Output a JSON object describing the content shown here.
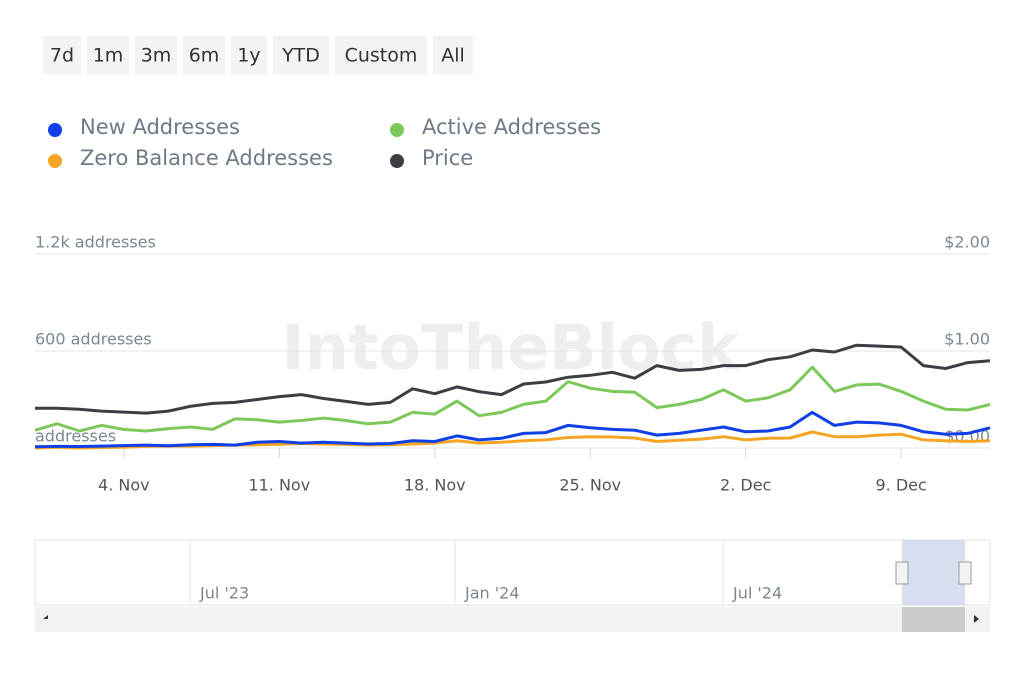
{
  "range_buttons": [
    "7d",
    "1m",
    "3m",
    "6m",
    "1y",
    "YTD",
    "Custom",
    "All"
  ],
  "watermark": "IntoTheBlock",
  "navigator_labels": [
    "Jul '23",
    "Jan '24",
    "Jul '24"
  ],
  "chart_data": {
    "type": "line",
    "categories": [
      null,
      null,
      null,
      null,
      "4. Nov",
      null,
      null,
      null,
      null,
      null,
      null,
      "11. Nov",
      null,
      null,
      null,
      null,
      null,
      null,
      "18. Nov",
      null,
      null,
      null,
      null,
      null,
      null,
      "25. Nov",
      null,
      null,
      null,
      null,
      null,
      null,
      "2. Dec",
      null,
      null,
      null,
      null,
      null,
      null,
      "9. Dec",
      null,
      null,
      null,
      null
    ],
    "series": [
      {
        "name": "New Addresses",
        "color": "#0f3fe6",
        "values": [
          8,
          10,
          9,
          12,
          15,
          18,
          14,
          20,
          22,
          18,
          35,
          40,
          30,
          35,
          30,
          25,
          28,
          45,
          40,
          75,
          50,
          60,
          90,
          95,
          140,
          125,
          115,
          110,
          80,
          90,
          110,
          130,
          100,
          105,
          130,
          220,
          140,
          160,
          155,
          140,
          100,
          85,
          90,
          125
        ]
      },
      {
        "name": "Active Addresses",
        "color": "#7cc95a",
        "values": [
          110,
          150,
          105,
          140,
          115,
          105,
          120,
          130,
          115,
          180,
          175,
          160,
          170,
          185,
          170,
          150,
          160,
          220,
          210,
          290,
          200,
          220,
          270,
          290,
          410,
          370,
          350,
          345,
          250,
          270,
          300,
          360,
          290,
          310,
          360,
          500,
          350,
          390,
          395,
          350,
          290,
          240,
          235,
          270
        ]
      },
      {
        "name": "Zero Balance Addresses",
        "color": "#f5a524",
        "values": [
          0,
          5,
          0,
          3,
          5,
          10,
          12,
          12,
          15,
          18,
          20,
          22,
          28,
          24,
          22,
          18,
          20,
          25,
          30,
          45,
          30,
          35,
          45,
          50,
          65,
          70,
          68,
          62,
          40,
          48,
          55,
          70,
          50,
          60,
          62,
          99,
          70,
          70,
          80,
          85,
          50,
          45,
          40,
          45
        ]
      },
      {
        "name": "Price",
        "color": "#3b3e42",
        "axis": "y2",
        "values": [
          0.41,
          0.41,
          0.4,
          0.38,
          0.37,
          0.36,
          0.38,
          0.43,
          0.46,
          0.47,
          0.5,
          0.53,
          0.55,
          0.51,
          0.48,
          0.45,
          0.47,
          0.61,
          0.56,
          0.63,
          0.58,
          0.55,
          0.66,
          0.68,
          0.73,
          0.75,
          0.78,
          0.72,
          0.85,
          0.8,
          0.81,
          0.85,
          0.85,
          0.91,
          0.94,
          1.01,
          0.99,
          1.06,
          1.05,
          1.04,
          0.85,
          0.82,
          0.88,
          0.9
        ]
      }
    ],
    "ylim": [
      0,
      1200
    ],
    "yticks": [
      {
        "value": 0,
        "label": "addresses"
      },
      {
        "value": 600,
        "label": "600 addresses"
      },
      {
        "value": 1200,
        "label": "1.2k addresses"
      }
    ],
    "y2lim": [
      0,
      2
    ],
    "y2ticks": [
      {
        "value": 0,
        "label": "$0.00"
      },
      {
        "value": 1,
        "label": "$1.00"
      },
      {
        "value": 2,
        "label": "$2.00"
      }
    ],
    "grid": true,
    "legend": "top-left"
  }
}
